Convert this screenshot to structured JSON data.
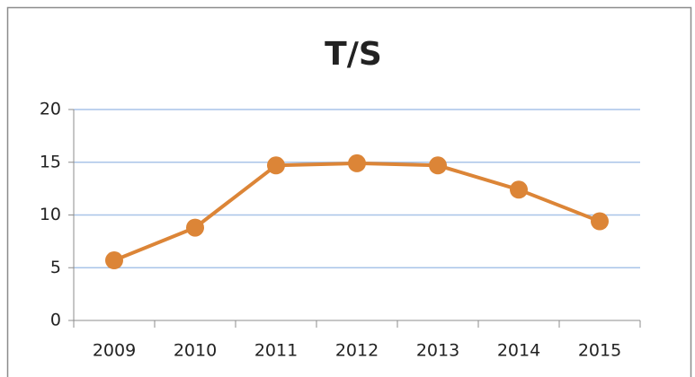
{
  "chart_data": {
    "type": "line",
    "title": "T/S",
    "categories": [
      "2009",
      "2010",
      "2011",
      "2012",
      "2013",
      "2014",
      "2015"
    ],
    "values": [
      5.7,
      8.8,
      14.7,
      14.9,
      14.7,
      12.4,
      9.4
    ],
    "color": "#dc8537",
    "ylim": [
      0,
      20
    ],
    "yticks": [
      0,
      5,
      10,
      15,
      20
    ],
    "grid": true
  }
}
